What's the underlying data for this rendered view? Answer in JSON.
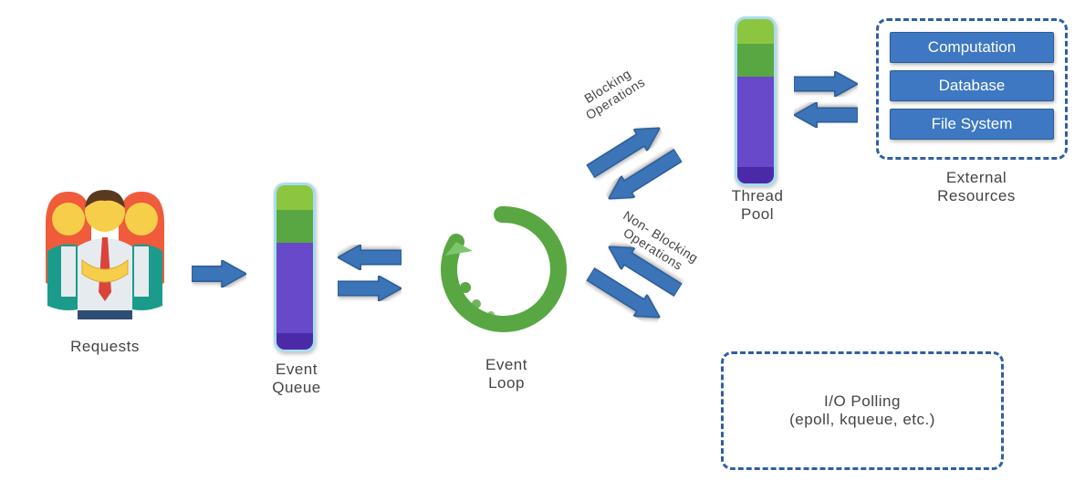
{
  "colors": {
    "arrow": "#3b74b7",
    "arrow_stroke": "#2b5c97",
    "dashed_border": "#2f5fa4",
    "dashed_bg": "#ffffff",
    "queue_border": "#a9ddee",
    "loop_main": "#58a742",
    "loop_light": "#7fc569",
    "text": "#444444",
    "res_btn_bg": "#3e78c2",
    "res_btn_border": "#2b5c97",
    "res_btn_text": "#ffffff",
    "seg1": "#8cc540",
    "seg2": "#58a742",
    "seg3": "#6749c9",
    "seg4": "#4b2aa8",
    "person_face": "#f7ce4a",
    "person_hair_m": "#5a3a1f",
    "person_hair_f": "#f05b3b",
    "person_jacket": "#1b9b8c",
    "person_shirt": "#e6ebef",
    "person_tie": "#d9453a",
    "person_pants": "#2e4d73"
  },
  "labels": {
    "requests": "Requests",
    "event_queue": "Event\nQueue",
    "event_loop": "Event\nLoop",
    "blocking": "Blocking\nOperations",
    "non_blocking": "Non- Blocking\nOperations",
    "thread_pool": "Thread\nPool",
    "external_resources": "External\nResources",
    "io_polling": "I/O Polling\n(epoll, kqueue, etc.)"
  },
  "resources": [
    "Computation",
    "Database",
    "File System"
  ],
  "queue_segments": [
    {
      "color_key": "seg1",
      "pct": 15
    },
    {
      "color_key": "seg2",
      "pct": 20
    },
    {
      "color_key": "seg3",
      "pct": 55
    },
    {
      "color_key": "seg4",
      "pct": 10
    }
  ],
  "typography": {
    "label_fontsize": 17,
    "small_label_fontsize": 14,
    "res_btn_fontsize": 17
  }
}
